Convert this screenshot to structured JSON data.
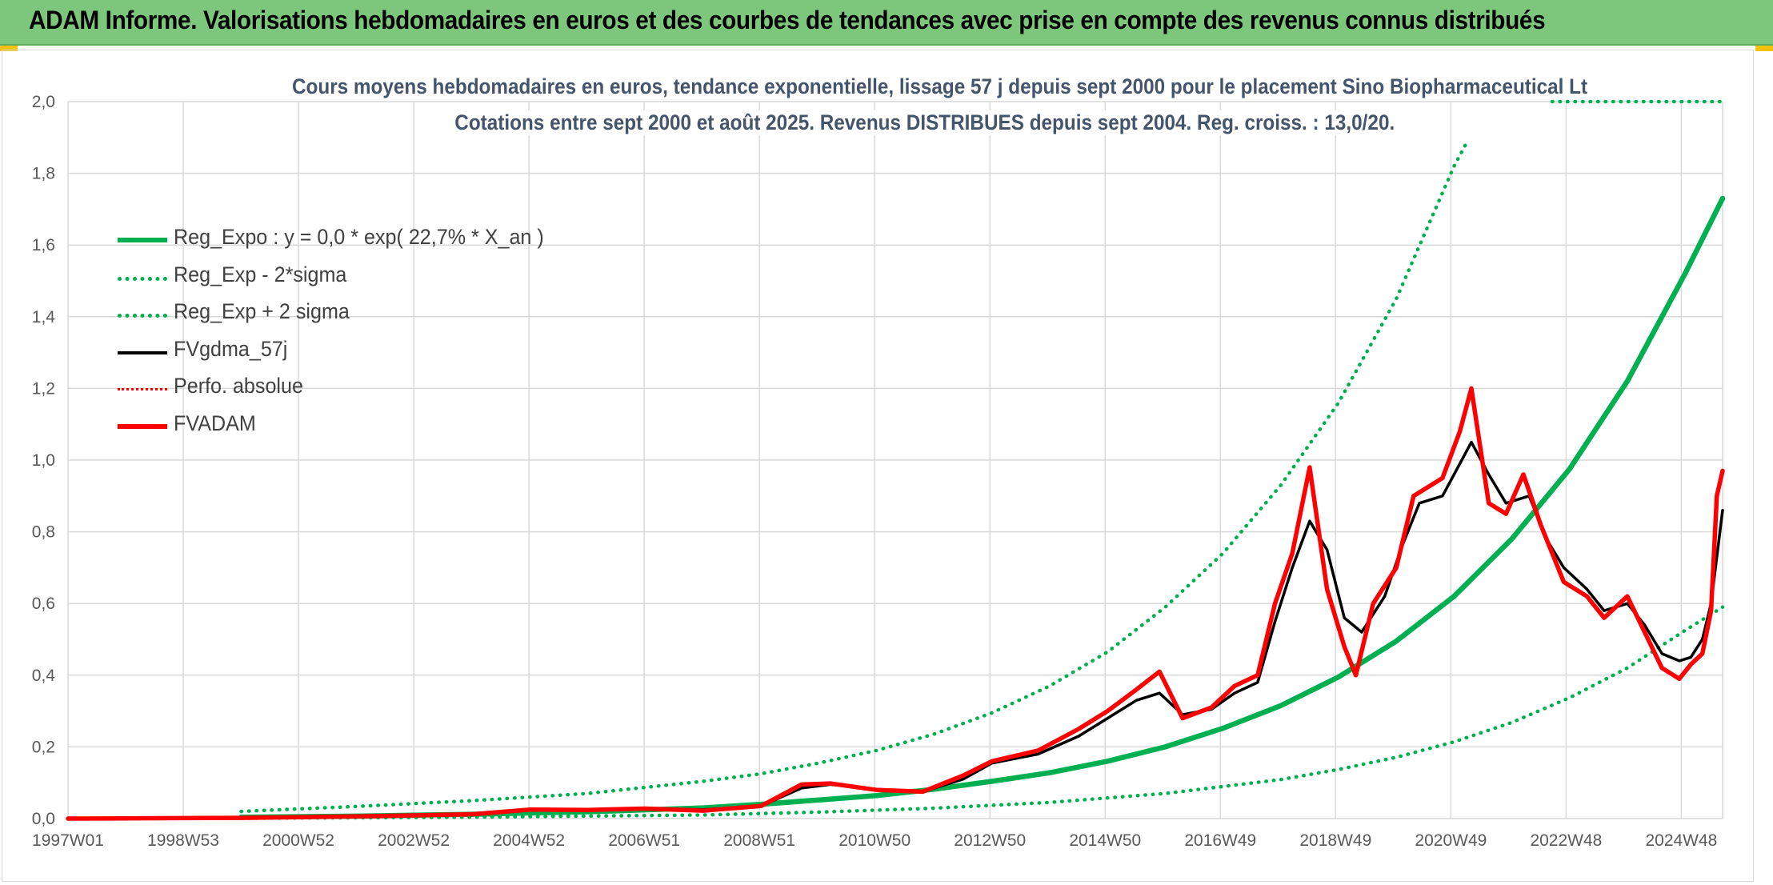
{
  "banner": {
    "title": "ADAM Informe. Valorisations hebdomadaires en euros et des courbes de tendances avec prise en compte des revenus connus distribués"
  },
  "chart_data": {
    "type": "line",
    "title_line1": "Cours moyens hebdomadaires en euros, tendance exponentielle, lissage 57 j depuis sept 2000 pour le placement Sino Biopharmaceutical Lt",
    "title_line2": "Cotations entre sept 2000 et août 2025. Revenus DISTRIBUES depuis sept 2004. Reg. croiss. : 13,0/20.",
    "x_tick_labels": [
      "1997W01",
      "1998W53",
      "2000W52",
      "2002W52",
      "2004W52",
      "2006W51",
      "2008W51",
      "2010W50",
      "2012W50",
      "2014W50",
      "2016W49",
      "2018W49",
      "2020W49",
      "2022W48",
      "2024W48"
    ],
    "x_range": [
      1997.0,
      2025.65
    ],
    "ylim": [
      0,
      2.0
    ],
    "y_tick_labels": [
      "0,0",
      "0,2",
      "0,4",
      "0,6",
      "0,8",
      "1,0",
      "1,2",
      "1,4",
      "1,6",
      "1,8",
      "2,0"
    ],
    "grid": true,
    "legend_position": "top-left",
    "colors": {
      "green": "#00b050",
      "black": "#000000",
      "red": "#ff0000",
      "grid": "#d9d9d9",
      "text": "#595959"
    },
    "series": [
      {
        "name": "Reg_Expo : y = 0,0 * exp( 22,7% *  X_an )",
        "style": "solid",
        "color": "#00b050",
        "points": [
          [
            2000.0,
            0.004
          ],
          [
            2002.0,
            0.007
          ],
          [
            2004.0,
            0.012
          ],
          [
            2006.0,
            0.019
          ],
          [
            2008.0,
            0.03
          ],
          [
            2009.0,
            0.04
          ],
          [
            2010.0,
            0.052
          ],
          [
            2011.0,
            0.064
          ],
          [
            2012.0,
            0.082
          ],
          [
            2013.0,
            0.104
          ],
          [
            2014.0,
            0.128
          ],
          [
            2015.0,
            0.16
          ],
          [
            2016.0,
            0.2
          ],
          [
            2017.0,
            0.252
          ],
          [
            2018.0,
            0.315
          ],
          [
            2019.0,
            0.395
          ],
          [
            2020.0,
            0.495
          ],
          [
            2021.0,
            0.62
          ],
          [
            2022.0,
            0.78
          ],
          [
            2023.0,
            0.975
          ],
          [
            2024.0,
            1.22
          ],
          [
            2025.0,
            1.52
          ],
          [
            2025.65,
            1.73
          ]
        ]
      },
      {
        "name": "Reg_Exp - 2*sigma",
        "style": "dotted",
        "color": "#00b050",
        "points": [
          [
            2000.0,
            0.001
          ],
          [
            2004.0,
            0.004
          ],
          [
            2008.0,
            0.01
          ],
          [
            2010.0,
            0.018
          ],
          [
            2012.0,
            0.029
          ],
          [
            2014.0,
            0.045
          ],
          [
            2016.0,
            0.07
          ],
          [
            2018.0,
            0.109
          ],
          [
            2019.0,
            0.137
          ],
          [
            2020.0,
            0.171
          ],
          [
            2021.0,
            0.214
          ],
          [
            2022.0,
            0.268
          ],
          [
            2023.0,
            0.337
          ],
          [
            2024.0,
            0.42
          ],
          [
            2025.0,
            0.525
          ],
          [
            2025.65,
            0.59
          ]
        ]
      },
      {
        "name": "Reg_Exp + 2 sigma",
        "style": "dotted",
        "color": "#00b050",
        "points": [
          [
            2000.0,
            0.02
          ],
          [
            2002.0,
            0.034
          ],
          [
            2004.0,
            0.05
          ],
          [
            2006.0,
            0.07
          ],
          [
            2008.0,
            0.104
          ],
          [
            2009.0,
            0.125
          ],
          [
            2010.0,
            0.155
          ],
          [
            2011.0,
            0.19
          ],
          [
            2012.0,
            0.236
          ],
          [
            2013.0,
            0.295
          ],
          [
            2014.0,
            0.37
          ],
          [
            2015.0,
            0.465
          ],
          [
            2016.0,
            0.59
          ],
          [
            2017.0,
            0.74
          ],
          [
            2018.0,
            0.93
          ],
          [
            2019.0,
            1.16
          ],
          [
            2020.0,
            1.45
          ],
          [
            2021.0,
            1.82
          ],
          [
            2021.2,
            1.88
          ]
        ]
      },
      {
        "name": "FVgdma_57j",
        "style": "solid",
        "color": "#000000",
        "points": [
          [
            1997.0,
            0.0
          ],
          [
            2000.0,
            0.002
          ],
          [
            2002.0,
            0.006
          ],
          [
            2004.0,
            0.012
          ],
          [
            2005.0,
            0.025
          ],
          [
            2006.0,
            0.026
          ],
          [
            2007.0,
            0.027
          ],
          [
            2008.0,
            0.025
          ],
          [
            2009.0,
            0.035
          ],
          [
            2009.7,
            0.085
          ],
          [
            2010.2,
            0.095
          ],
          [
            2011.0,
            0.082
          ],
          [
            2011.8,
            0.075
          ],
          [
            2012.5,
            0.11
          ],
          [
            2013.0,
            0.155
          ],
          [
            2013.8,
            0.18
          ],
          [
            2014.5,
            0.23
          ],
          [
            2015.0,
            0.28
          ],
          [
            2015.5,
            0.33
          ],
          [
            2015.9,
            0.35
          ],
          [
            2016.3,
            0.29
          ],
          [
            2016.8,
            0.305
          ],
          [
            2017.2,
            0.35
          ],
          [
            2017.6,
            0.38
          ],
          [
            2017.9,
            0.55
          ],
          [
            2018.2,
            0.7
          ],
          [
            2018.5,
            0.83
          ],
          [
            2018.8,
            0.75
          ],
          [
            2019.1,
            0.56
          ],
          [
            2019.4,
            0.52
          ],
          [
            2019.8,
            0.62
          ],
          [
            2020.1,
            0.76
          ],
          [
            2020.4,
            0.88
          ],
          [
            2020.8,
            0.9
          ],
          [
            2021.1,
            0.99
          ],
          [
            2021.3,
            1.05
          ],
          [
            2021.6,
            0.96
          ],
          [
            2021.9,
            0.88
          ],
          [
            2022.3,
            0.9
          ],
          [
            2022.6,
            0.78
          ],
          [
            2022.9,
            0.7
          ],
          [
            2023.3,
            0.64
          ],
          [
            2023.6,
            0.58
          ],
          [
            2024.0,
            0.6
          ],
          [
            2024.3,
            0.54
          ],
          [
            2024.6,
            0.46
          ],
          [
            2024.9,
            0.44
          ],
          [
            2025.1,
            0.45
          ],
          [
            2025.3,
            0.5
          ],
          [
            2025.45,
            0.6
          ],
          [
            2025.65,
            0.86
          ]
        ]
      },
      {
        "name": "Perfo. absolue",
        "style": "dotted",
        "color": "#ff0000",
        "points": []
      },
      {
        "name": "FVADAM",
        "style": "solid",
        "color": "#ff0000",
        "points": [
          [
            1997.0,
            0.0
          ],
          [
            2000.0,
            0.002
          ],
          [
            2002.0,
            0.006
          ],
          [
            2004.0,
            0.012
          ],
          [
            2005.0,
            0.025
          ],
          [
            2006.0,
            0.024
          ],
          [
            2007.0,
            0.028
          ],
          [
            2008.0,
            0.022
          ],
          [
            2009.0,
            0.035
          ],
          [
            2009.7,
            0.095
          ],
          [
            2010.2,
            0.098
          ],
          [
            2011.0,
            0.08
          ],
          [
            2011.8,
            0.075
          ],
          [
            2012.5,
            0.12
          ],
          [
            2013.0,
            0.16
          ],
          [
            2013.8,
            0.19
          ],
          [
            2014.5,
            0.25
          ],
          [
            2015.0,
            0.3
          ],
          [
            2015.5,
            0.36
          ],
          [
            2015.9,
            0.41
          ],
          [
            2016.3,
            0.28
          ],
          [
            2016.8,
            0.31
          ],
          [
            2017.2,
            0.37
          ],
          [
            2017.6,
            0.4
          ],
          [
            2017.9,
            0.6
          ],
          [
            2018.2,
            0.74
          ],
          [
            2018.5,
            0.98
          ],
          [
            2018.8,
            0.64
          ],
          [
            2019.1,
            0.48
          ],
          [
            2019.3,
            0.4
          ],
          [
            2019.6,
            0.6
          ],
          [
            2020.0,
            0.7
          ],
          [
            2020.3,
            0.9
          ],
          [
            2020.8,
            0.95
          ],
          [
            2021.1,
            1.08
          ],
          [
            2021.3,
            1.2
          ],
          [
            2021.6,
            0.88
          ],
          [
            2021.9,
            0.85
          ],
          [
            2022.2,
            0.96
          ],
          [
            2022.5,
            0.82
          ],
          [
            2022.9,
            0.66
          ],
          [
            2023.3,
            0.62
          ],
          [
            2023.6,
            0.56
          ],
          [
            2024.0,
            0.62
          ],
          [
            2024.3,
            0.52
          ],
          [
            2024.6,
            0.42
          ],
          [
            2024.9,
            0.39
          ],
          [
            2025.1,
            0.43
          ],
          [
            2025.3,
            0.46
          ],
          [
            2025.45,
            0.58
          ],
          [
            2025.55,
            0.9
          ],
          [
            2025.65,
            0.97
          ]
        ]
      }
    ]
  }
}
